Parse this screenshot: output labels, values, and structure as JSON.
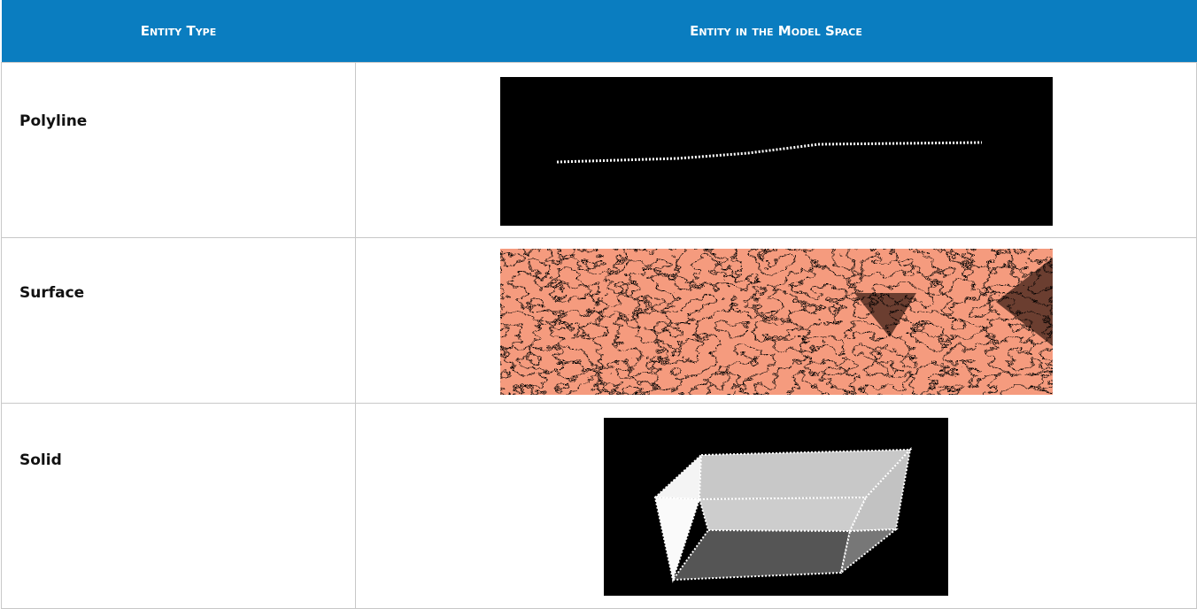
{
  "table": {
    "headers": [
      "Entity Type",
      "Entity in the Model Space"
    ],
    "rows": [
      [
        "Polyline"
      ],
      [
        "Surface"
      ],
      [
        "Solid"
      ]
    ]
  }
}
